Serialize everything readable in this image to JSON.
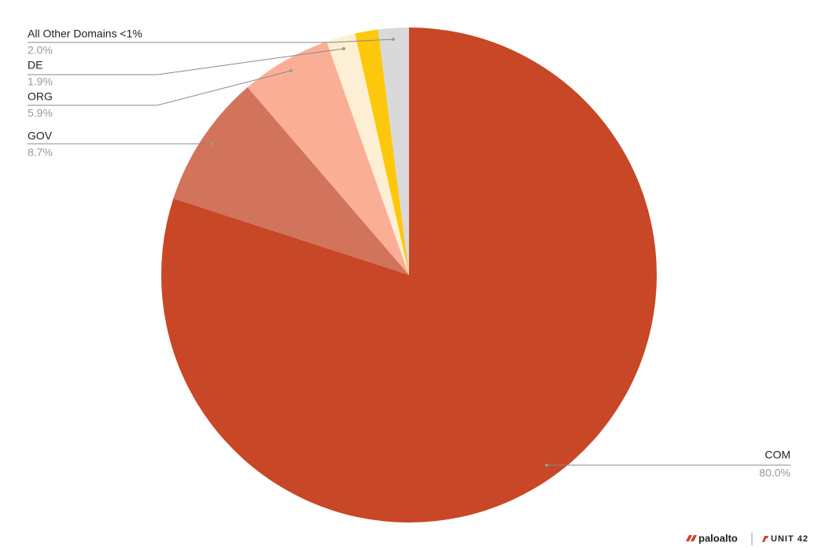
{
  "chart_data": {
    "type": "pie",
    "categories": [
      "COM",
      "GOV",
      "ORG",
      "DE",
      null,
      "All Other Domains <1%"
    ],
    "values": [
      80.0,
      8.7,
      5.9,
      1.9,
      1.5,
      2.0
    ],
    "value_labels": [
      "80.0%",
      "8.7%",
      "5.9%",
      "1.9%",
      null,
      "2.0%"
    ],
    "colors": [
      "#c84727",
      "#d2735c",
      "#fbae96",
      "#fdefd3",
      "#fdc80c",
      "#d9d9d9"
    ]
  },
  "branding": [
    "paloalto",
    "UNIT 42"
  ]
}
